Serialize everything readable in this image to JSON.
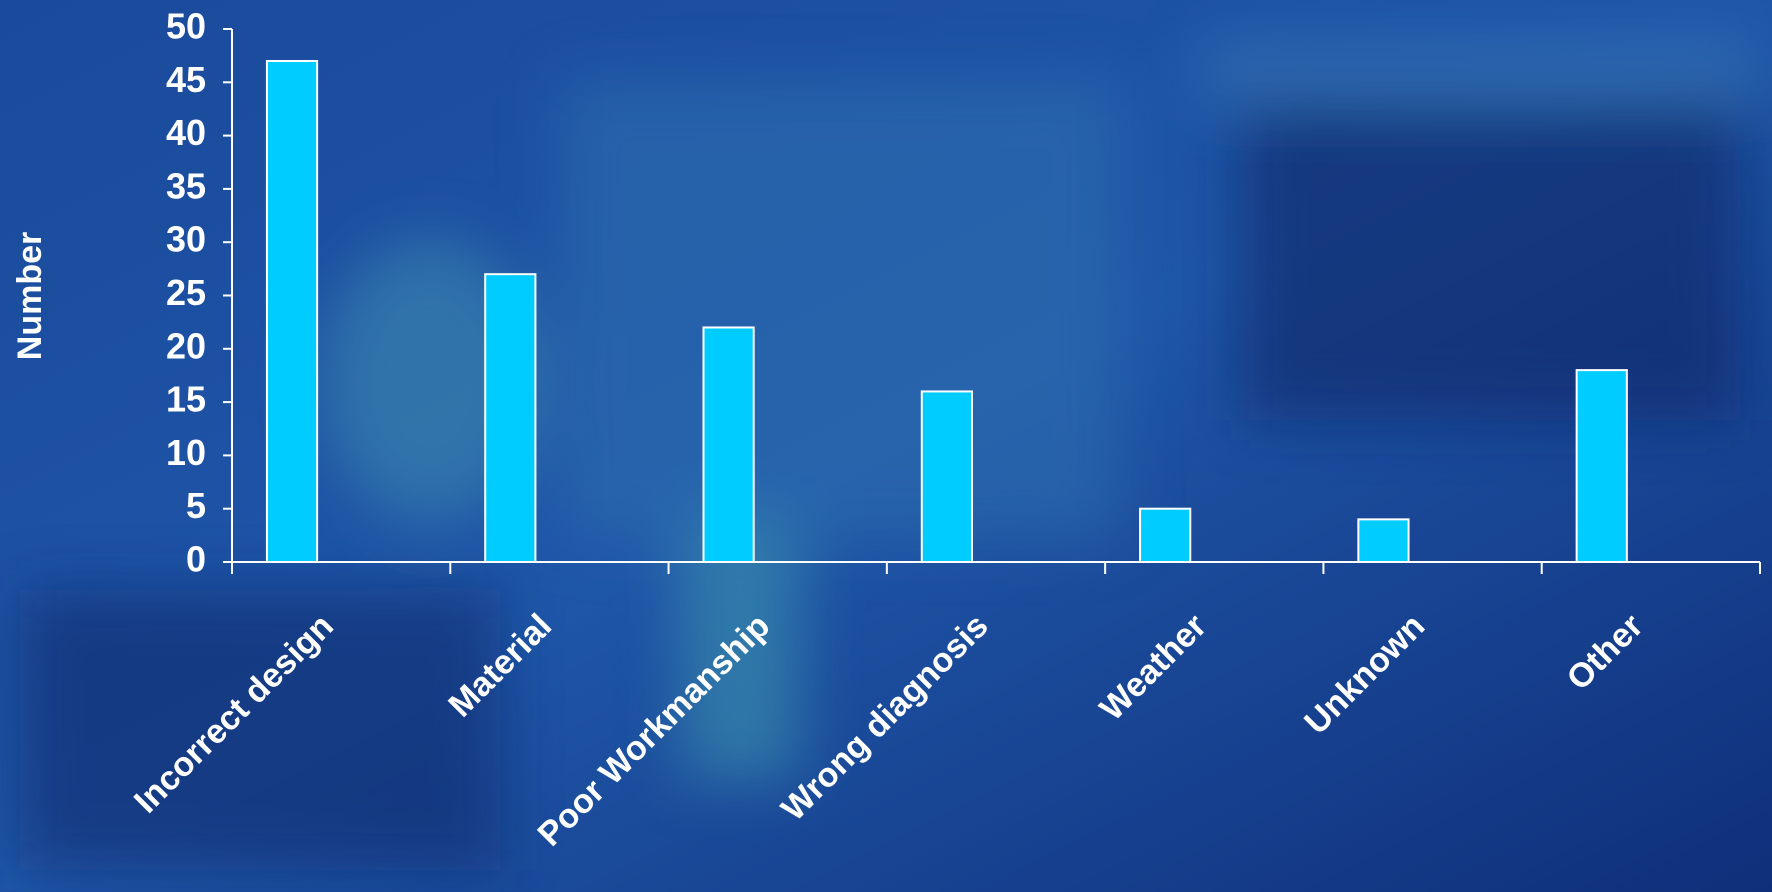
{
  "chart_data": {
    "type": "bar",
    "y_label": "Number",
    "categories": [
      "Incorrect design",
      "Material",
      "Poor Workmanship",
      "Wrong diagnosis",
      "Weather",
      "Unknown",
      "Other"
    ],
    "values": [
      47,
      27,
      22,
      16,
      5,
      4,
      18
    ],
    "color": "#00ccff",
    "ylim": [
      0,
      50
    ],
    "yticks": [
      0,
      5,
      10,
      15,
      20,
      25,
      30,
      35,
      40,
      45,
      50
    ]
  }
}
